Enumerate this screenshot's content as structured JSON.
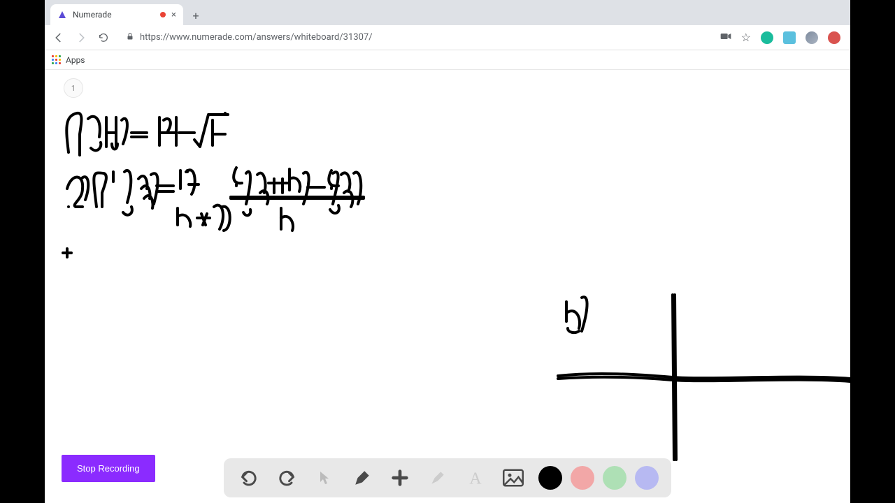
{
  "browser": {
    "tab": {
      "title": "Numerade",
      "recording": true
    },
    "url": "https://www.numerade.com/answers/whiteboard/31307/",
    "bookmarks_bar": {
      "apps_label": "Apps"
    },
    "extensions": [
      {
        "color": "#1abc9c"
      },
      {
        "color": "#5bc0de"
      },
      {
        "color": "#7e8b9e"
      },
      {
        "color": "#d9534f"
      }
    ]
  },
  "whiteboard": {
    "page_number": "1",
    "stop_button_label": "Stop Recording",
    "ink": {
      "stroke_color": "#000000",
      "stroke_width": 4,
      "paths": [
        "M 34 118 C 30 85, 28 66, 46 62 C 56 60, 52 78, 50 92 L 50 122",
        "M 62 70 C 70 62, 82 68, 78 96 M 66 112 C 74 120, 82 112, 80 104",
        "M 88 68 L 88 110 M 88 90 L 102 90 M 102 68 L 102 110 M 104 106 C 104 116, 96 116, 96 106",
        "M 110 72 C 118 64, 122 78, 112 106",
        "M 124 90 L 146 90 M 124 96 L 146 96",
        "M 164 68 L 164 108 M 164 90 L 188 90 M 188 68 L 188 108 M 170 72 C 178 66, 184 74, 176 88",
        "M 192 90 L 214 90",
        "M 214 100 L 222 110 L 234 64 M 234 64 L 262 64 M 240 72 L 240 108 M 240 92 L 258 92 M 258 62 L 258 64",
        "M 32 170 C 38 148, 56 148, 54 170 C 54 186, 38 192, 44 196 L 54 196 M 34 196 C 34 196, 34 196, 34 196",
        "M 52 156 C 62 146, 66 164, 58 186",
        "M 74 196 C 68 146, 68 146, 84 148 C 92 150, 86 164, 82 176 L 82 196",
        "M 98 146 L 98 160 M 98 148 L 98 156",
        "M 114 146 C 122 138, 128 154, 118 190 M 112 204 C 118 212, 128 206, 124 196",
        "M 134 156 C 144 144, 148 162, 146 170 M 138 170 C 148 158, 152 176, 150 184 M 142 184 C 152 172, 156 190, 154 198",
        "M 152 150 C 164 142, 164 162, 156 192",
        "M 160 166 L 184 166 M 160 174 L 184 174",
        "M 194 144 L 194 170 M 204 144 L 204 146 M 202 146 C 216 134, 218 166, 210 178 M 206 164 L 220 164",
        "M 190 198 L 190 222 M 190 210 C 202 202, 210 216, 208 224",
        "M 218 212 L 236 212 M 224 206 L 230 222 M 226 222 L 232 206",
        "M 242 196 C 254 186, 260 210, 250 228 M 254 196 C 268 192, 268 228, 256 230",
        "M 274 140 C 268 152, 268 164, 282 162 M 274 166 L 274 164",
        "M 288 148 C 296 138, 296 160, 288 192 M 284 204 C 288 212, 296 208, 294 200",
        "M 304 150 C 314 140, 318 164, 314 176 M 308 176 C 318 166, 322 184, 318 192",
        "M 320 162 L 348 162 M 328 156 L 328 176 M 340 156 L 340 176",
        "M 350 142 L 350 172 M 350 156 C 362 150, 368 164, 364 174",
        "M 370 148 C 382 140, 378 170, 370 192",
        "M 376 168 L 400 168",
        "M 410 144 C 404 156, 404 168, 420 166 M 410 170 L 410 168",
        "M 412 148 C 424 140, 420 160, 412 192 M 408 200 C 414 210, 424 204, 420 194",
        "M 424 150 C 434 140, 440 162, 434 174 M 428 176 C 438 166, 444 186, 438 196",
        "M 442 148 C 452 140, 456 168, 448 192",
        "M 266 182 L 456 182 M 266 184 L 456 184",
        "M 338 198 L 338 228 M 338 212 C 350 204, 358 220, 354 230",
        "M 746 332 L 746 360 M 746 348 C 760 338, 768 356, 764 370 M 748 370 C 748 376, 758 378, 764 374",
        "M 768 326 C 780 320, 776 348, 768 374",
        "M 898 322 L 900 558 M 901 322 L 903 558",
        "M 734 438 C 790 432, 850 436, 898 440 C 950 444, 1074 436, 1152 442 M 734 442 C 790 438, 850 440, 898 444 C 950 448, 1074 440, 1152 446",
        "M 26 262 L 38 262 M 32 256 L 32 268"
      ]
    },
    "toolbar": {
      "background": "#e8e8e8",
      "colors": [
        {
          "name": "black",
          "hex": "#000000"
        },
        {
          "name": "red",
          "hex": "#f2a7a7"
        },
        {
          "name": "green",
          "hex": "#aee0b5"
        },
        {
          "name": "purple",
          "hex": "#b7b9f2"
        }
      ]
    }
  }
}
